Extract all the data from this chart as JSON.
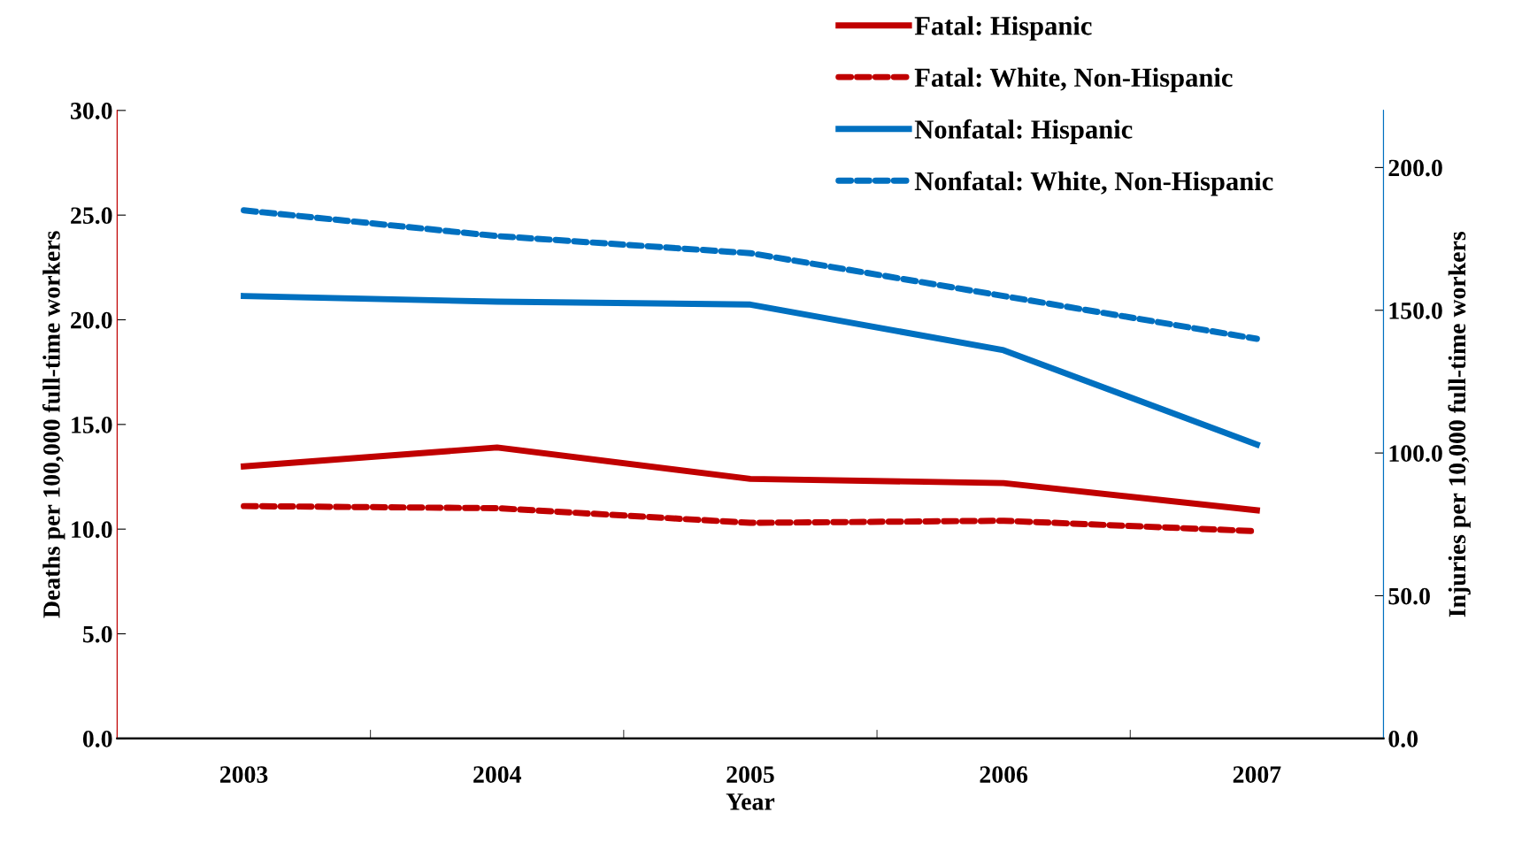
{
  "chart_data": {
    "type": "line",
    "xlabel": "Year",
    "ylabel": "Deaths per 100,000 full-time workers",
    "y2label": "Injuries per 10,000 full-time workers",
    "categories": [
      "2003",
      "2004",
      "2005",
      "2006",
      "2007"
    ],
    "series": [
      {
        "name": "Fatal: Hispanic",
        "color": "#c00000",
        "line_style": "solid",
        "values": [
          13.0,
          13.9,
          12.4,
          12.2,
          10.9
        ]
      },
      {
        "name": "Fatal: White, Non-Hispanic",
        "color": "#c00000",
        "line_style": "dashed",
        "values": [
          11.1,
          11.0,
          10.3,
          10.4,
          9.9
        ]
      },
      {
        "name": "Nonfatal: Hispanic",
        "color": "#0070c0",
        "line_style": "solid",
        "axis": "y2",
        "values": [
          155,
          153,
          152,
          136,
          103
        ]
      },
      {
        "name": "Nonfatal: White, Non-Hispanic",
        "color": "#0070c0",
        "line_style": "dashed",
        "axis": "y2",
        "values": [
          185,
          176,
          170,
          155,
          140
        ]
      }
    ],
    "ylim": [
      0,
      30
    ],
    "yticks": [
      {
        "value": 0,
        "label": "0.0"
      },
      {
        "value": 5,
        "label": "5.0"
      },
      {
        "value": 10,
        "label": "10.0"
      },
      {
        "value": 15,
        "label": "15.0"
      },
      {
        "value": 20,
        "label": "20.0"
      },
      {
        "value": 25,
        "label": "25.0"
      },
      {
        "value": 30,
        "label": "30.0"
      }
    ],
    "y2lim": [
      0,
      220
    ],
    "y2ticks": [
      {
        "value": 0,
        "label": "0.0"
      },
      {
        "value": 50,
        "label": "50.0"
      },
      {
        "value": 100,
        "label": "100.0"
      },
      {
        "value": 150,
        "label": "150.0"
      },
      {
        "value": 200,
        "label": "200.0"
      }
    ],
    "grid": false,
    "legend": "top",
    "marker": "none"
  }
}
